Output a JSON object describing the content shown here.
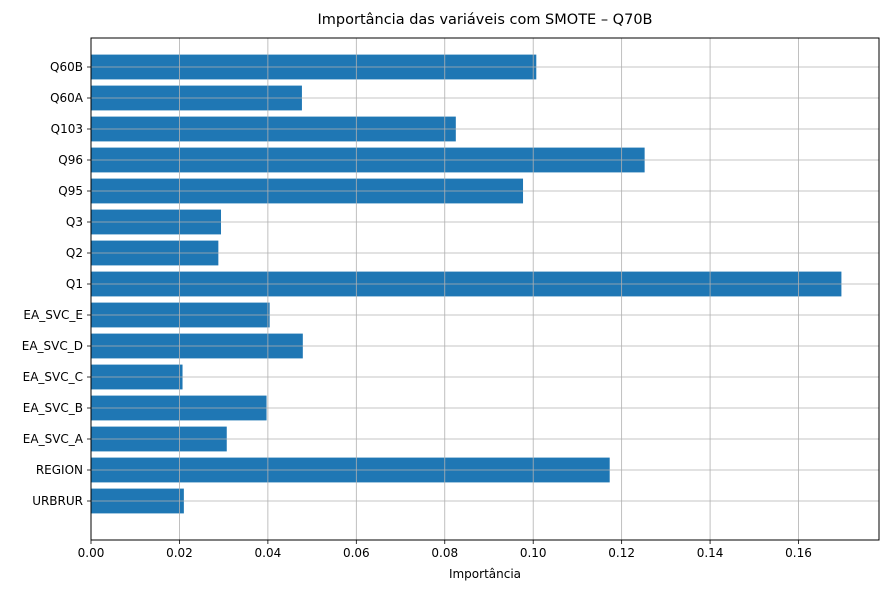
{
  "chart_data": {
    "type": "bar",
    "orientation": "horizontal",
    "title": "Importância das variáveis com SMOTE – Q70B",
    "xlabel": "Importância",
    "ylabel": "",
    "categories": [
      "URBRUR",
      "REGION",
      "EA_SVC_A",
      "EA_SVC_B",
      "EA_SVC_C",
      "EA_SVC_D",
      "EA_SVC_E",
      "Q1",
      "Q2",
      "Q3",
      "Q95",
      "Q96",
      "Q103",
      "Q60A",
      "Q60B"
    ],
    "values": [
      0.021,
      0.1173,
      0.0307,
      0.0397,
      0.0207,
      0.0479,
      0.0404,
      0.1697,
      0.0288,
      0.0294,
      0.0977,
      0.1252,
      0.0825,
      0.0477,
      0.1007
    ],
    "xlim": [
      0,
      0.1782
    ],
    "xticks": [
      "0.00",
      "0.02",
      "0.04",
      "0.06",
      "0.08",
      "0.10",
      "0.12",
      "0.14",
      "0.16"
    ],
    "grid": true,
    "bar_color": "#1f77b4",
    "legend": "none"
  }
}
